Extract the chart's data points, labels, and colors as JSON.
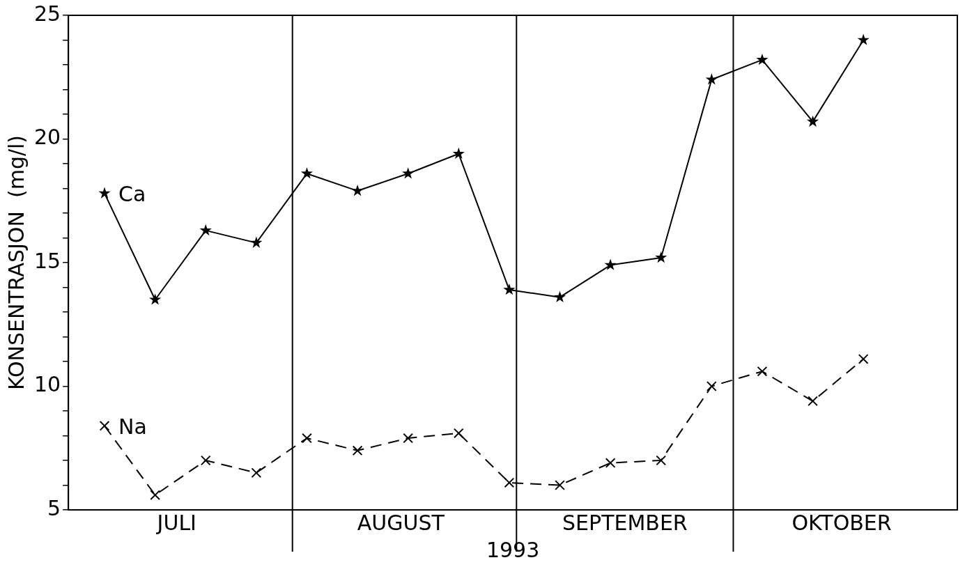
{
  "chart_data": {
    "type": "line",
    "xlabel": "1993",
    "ylabel": "KONSENTRASJON  (mg/l)",
    "x": [
      "1993-07-06",
      "1993-07-13",
      "1993-07-20",
      "1993-07-27",
      "1993-08-03",
      "1993-08-10",
      "1993-08-17",
      "1993-08-24",
      "1993-08-31",
      "1993-09-07",
      "1993-09-14",
      "1993-09-21",
      "1993-09-28",
      "1993-10-05",
      "1993-10-12",
      "1993-10-19"
    ],
    "series": [
      {
        "name": "Ca",
        "color": "#000000",
        "marker": "star",
        "line_style": "solid",
        "values": [
          17.8,
          13.5,
          16.3,
          15.8,
          18.6,
          17.9,
          18.6,
          19.4,
          13.9,
          13.6,
          14.9,
          15.2,
          22.4,
          23.2,
          20.7,
          24.0
        ]
      },
      {
        "name": "Na",
        "color": "#000000",
        "marker": "cross",
        "line_style": "dashed",
        "values": [
          8.4,
          5.6,
          7.0,
          6.5,
          7.9,
          7.4,
          7.9,
          8.1,
          6.1,
          6.0,
          6.9,
          7.0,
          10.0,
          10.6,
          9.4,
          11.1
        ]
      }
    ],
    "xlim": [
      "1993-07-01",
      "1993-11-01"
    ],
    "xticks": [
      {
        "value": "1993-07-16",
        "label": "JULI"
      },
      {
        "value": "1993-08-16",
        "label": "AUGUST"
      },
      {
        "value": "1993-09-16",
        "label": "SEPTEMBER"
      },
      {
        "value": "1993-10-16",
        "label": "OKTOBER"
      }
    ],
    "ylim": [
      5,
      25
    ],
    "yticks": [
      5,
      {
        "value": 6,
        "label": null
      },
      {
        "value": 7,
        "label": null
      },
      {
        "value": 8,
        "label": null
      },
      {
        "value": 9,
        "label": null
      },
      10,
      {
        "value": 11,
        "label": null
      },
      {
        "value": 12,
        "label": null
      },
      {
        "value": 13,
        "label": null
      },
      {
        "value": 14,
        "label": null
      },
      15,
      {
        "value": 16,
        "label": null
      },
      {
        "value": 17,
        "label": null
      },
      {
        "value": 18,
        "label": null
      },
      {
        "value": 19,
        "label": null
      },
      20,
      {
        "value": 21,
        "label": null
      },
      {
        "value": 22,
        "label": null
      },
      {
        "value": 23,
        "label": null
      },
      {
        "value": 24,
        "label": null
      },
      25
    ],
    "ref_lines": [
      {
        "axis": "x",
        "value": "1993-08-01",
        "color": "#000000"
      },
      {
        "axis": "x",
        "value": "1993-09-01",
        "color": "#000000"
      },
      {
        "axis": "x",
        "value": "1993-10-01",
        "color": "#000000"
      }
    ],
    "grid": false,
    "legend": false
  }
}
